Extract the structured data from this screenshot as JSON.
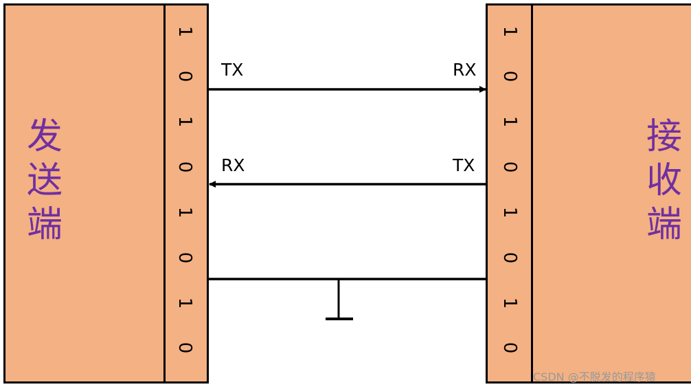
{
  "sender": {
    "label": "发送端",
    "bits": [
      "1",
      "0",
      "1",
      "0",
      "1",
      "0",
      "1",
      "0"
    ]
  },
  "receiver": {
    "label": "接收端",
    "bits": [
      "1",
      "0",
      "1",
      "0",
      "1",
      "0",
      "1",
      "0"
    ]
  },
  "wires": {
    "top_left_label": "TX",
    "top_right_label": "RX",
    "middle_left_label": "RX",
    "middle_right_label": "TX"
  },
  "watermark": "CSDN @不脱发的程序猿",
  "colors": {
    "box_fill": "#f4b183",
    "side_label": "#7030a0",
    "line": "#000000"
  }
}
